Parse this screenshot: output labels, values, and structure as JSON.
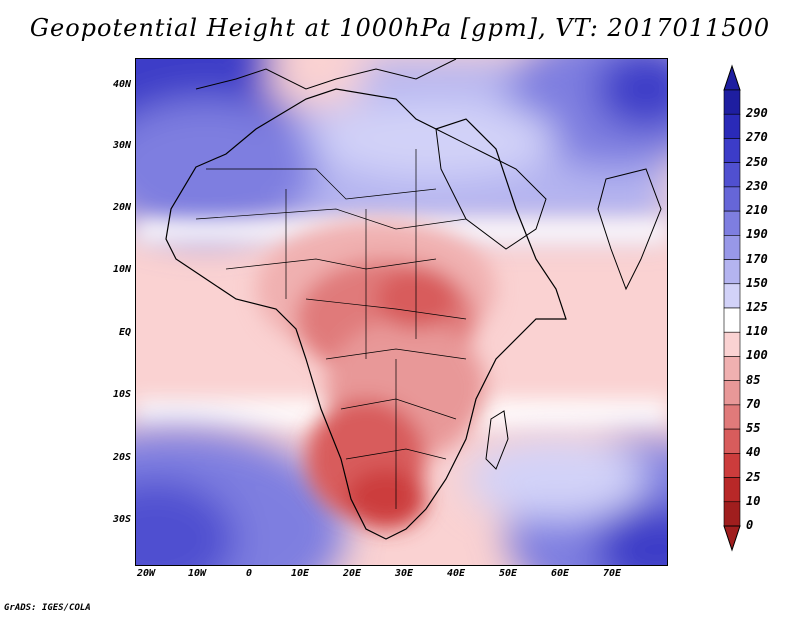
{
  "title": "Geopotential Height at 1000hPa [gpm], VT: 2017011500",
  "map": {
    "region": "Africa and surrounding ocean",
    "projection": "lat-lon",
    "lon_range": [
      -25,
      80
    ],
    "lat_range": [
      -37,
      45
    ],
    "lat_ticks": [
      "40N",
      "30N",
      "20N",
      "10N",
      "EQ",
      "10S",
      "20S",
      "30S"
    ],
    "lon_ticks": [
      "20W",
      "10W",
      "0",
      "10E",
      "20E",
      "30E",
      "40E",
      "50E",
      "60E",
      "70E"
    ],
    "field": "geopotential height 1000 hPa",
    "units": "gpm",
    "coastlines": true,
    "country_borders": true
  },
  "colorbar": {
    "orientation": "vertical",
    "labels": [
      "290",
      "270",
      "250",
      "230",
      "210",
      "190",
      "170",
      "150",
      "125",
      "110",
      "100",
      "85",
      "70",
      "55",
      "40",
      "25",
      "10",
      "0"
    ],
    "colors": [
      "#1e1ea0",
      "#2a2ab8",
      "#3c3cc8",
      "#5050d0",
      "#6666d8",
      "#7e7ee0",
      "#9898e8",
      "#b4b4f0",
      "#d2d2f8",
      "#ffffff",
      "#fad2d2",
      "#f0b0b0",
      "#e89898",
      "#e07a7a",
      "#d85c5c",
      "#cc3c3c",
      "#b82828",
      "#a01e1e"
    ]
  },
  "credit": "GrADS: IGES/COLA"
}
